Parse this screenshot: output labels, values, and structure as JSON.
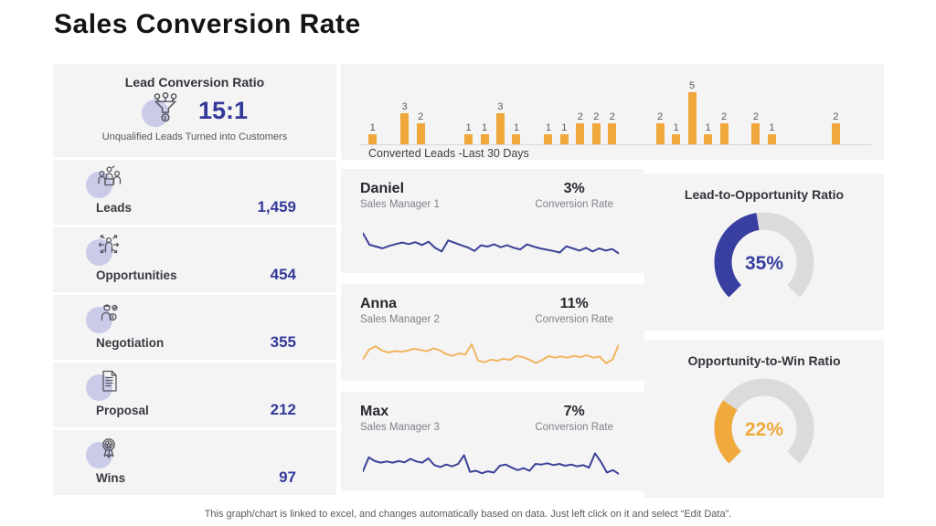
{
  "page": {
    "title": "Sales Conversion Rate",
    "footer": "This graph/chart is linked to excel, and changes automatically based on data. Just left click on it and select “Edit Data”."
  },
  "colors": {
    "accent_navy": "#343a99",
    "accent_orange": "#f0a83d",
    "panel_bg": "#f4f4f5",
    "gauge_track": "#dbdbdb",
    "icon_blob": "#c9cbe9"
  },
  "lead_ratio": {
    "title": "Lead Conversion Ratio",
    "value": "15:1",
    "subtitle": "Unqualified Leads Turned into Customers",
    "icon": "funnel-dollar-icon"
  },
  "funnel_stages": [
    {
      "label": "Leads",
      "value": "1,459",
      "icon": "leads-people-icon"
    },
    {
      "label": "Opportunities",
      "value": "454",
      "icon": "opportunities-person-arrows-icon"
    },
    {
      "label": "Negotiation",
      "value": "355",
      "icon": "negotiation-businessman-icon"
    },
    {
      "label": "Proposal",
      "value": "212",
      "icon": "proposal-document-icon"
    },
    {
      "label": "Wins",
      "value": "97",
      "icon": "wins-award-icon"
    }
  ],
  "managers": [
    {
      "name": "Daniel",
      "role": "Sales Manager 1",
      "rate": "3%",
      "rate_label": "Conversion  Rate"
    },
    {
      "name": "Anna",
      "role": "Sales Manager 2",
      "rate": "11%",
      "rate_label": "Conversion  Rate"
    },
    {
      "name": "Max",
      "role": "Sales Manager 3",
      "rate": "7%",
      "rate_label": "Conversion  Rate"
    }
  ],
  "chart_data": [
    {
      "type": "bar",
      "title": "Converted Leads -Last 30 Days",
      "x_note": "30 daily bars, day axis unlabeled, zero-value bars show no label",
      "values": [
        1,
        0,
        3,
        2,
        0,
        0,
        1,
        1,
        3,
        1,
        0,
        1,
        1,
        2,
        2,
        2,
        0,
        0,
        2,
        1,
        5,
        1,
        2,
        0,
        2,
        1,
        0,
        0,
        0,
        2
      ],
      "ylim": [
        0,
        5
      ],
      "bar_color": "#f0a83d",
      "data_labels": "non-zero values shown above bars",
      "grid": false
    },
    {
      "type": "line",
      "name": "Daniel daily conversion trend",
      "color": "#3b4197",
      "values": [
        9.3,
        5.6,
        5.0,
        4.4,
        5.2,
        5.8,
        6.3,
        5.8,
        6.4,
        5.5,
        6.6,
        4.6,
        3.4,
        7.0,
        6.2,
        5.4,
        4.7,
        3.6,
        5.4,
        5.0,
        5.7,
        4.8,
        5.4,
        4.6,
        4.1,
        5.7,
        5.0,
        4.4,
        4.0,
        3.6,
        3.1,
        5.1,
        4.4,
        3.7,
        4.6,
        3.4,
        4.4,
        3.7,
        4.2,
        2.8
      ],
      "axes": "hidden sparkline"
    },
    {
      "type": "line",
      "name": "Anna daily conversion trend",
      "color": "#f1b55f",
      "values": [
        3.4,
        6.6,
        7.6,
        6.2,
        5.6,
        6.1,
        5.8,
        6.2,
        6.8,
        6.4,
        6.0,
        6.9,
        6.3,
        5.1,
        4.5,
        5.3,
        4.9,
        8.3,
        3.0,
        2.4,
        3.3,
        2.9,
        3.6,
        3.2,
        4.5,
        4.1,
        3.3,
        2.2,
        3.1,
        4.4,
        3.9,
        4.3,
        3.9,
        4.5,
        4.1,
        4.7,
        3.9,
        4.3,
        2.1,
        3.3,
        8.1
      ],
      "axes": "hidden sparkline"
    },
    {
      "type": "line",
      "name": "Max daily conversion trend",
      "color": "#3b4197",
      "values": [
        2.9,
        7.4,
        6.2,
        5.7,
        6.1,
        5.7,
        6.2,
        5.8,
        6.9,
        6.1,
        5.7,
        7.1,
        4.9,
        4.3,
        5.1,
        4.5,
        5.3,
        8.1,
        2.7,
        3.1,
        2.3,
        2.9,
        2.5,
        4.7,
        5.1,
        4.1,
        3.3,
        3.9,
        3.1,
        5.3,
        5.1,
        5.5,
        4.9,
        5.3,
        4.7,
        5.1,
        4.5,
        4.9,
        4.1,
        8.7,
        5.9,
        2.5,
        3.3,
        2.1
      ],
      "axes": "hidden sparkline"
    },
    {
      "type": "gauge",
      "title": "Lead-to-Opportunity Ratio",
      "value": 35,
      "max": 100,
      "display": "35%",
      "sweep_deg": 270,
      "color": "#383fa0",
      "track_color": "#dbdbdb"
    },
    {
      "type": "gauge",
      "title": "Opportunity-to-Win Ratio",
      "value": 22,
      "max": 100,
      "display": "22%",
      "sweep_deg": 270,
      "color": "#efa93c",
      "track_color": "#dbdbdb"
    }
  ]
}
